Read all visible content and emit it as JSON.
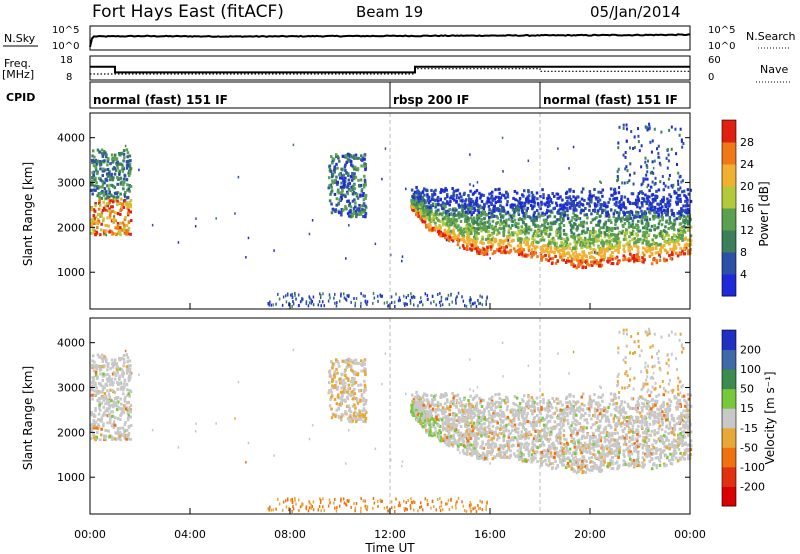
{
  "header": {
    "station": "Fort Hays East (fitACF)",
    "beam": "Beam 19",
    "date": "05/Jan/2014"
  },
  "noise_panel": {
    "left_label": "N.Sky",
    "left_ticks": [
      "10^5",
      "10^0"
    ],
    "right_label": "N.Search",
    "right_ticks": [
      "10^5",
      "10^0"
    ]
  },
  "freq_panel": {
    "left_label_1": "Freq.",
    "left_label_2": "[MHz]",
    "left_ticks": [
      "18",
      "8"
    ],
    "right_label": "Nave",
    "right_ticks": [
      "60",
      "0"
    ]
  },
  "cpid_panel": {
    "label": "CPID",
    "segments": [
      {
        "start_hour": 0,
        "text": "normal (fast) 151 IF"
      },
      {
        "start_hour": 12,
        "text": "rbsp 200 IF"
      },
      {
        "start_hour": 18,
        "text": "normal (fast) 151 IF"
      }
    ]
  },
  "x_axis": {
    "label": "Time UT",
    "ticks": [
      "00:00",
      "04:00",
      "08:00",
      "12:00",
      "16:00",
      "20:00",
      "00:00"
    ],
    "tick_hours": [
      0,
      4,
      8,
      12,
      16,
      20,
      24
    ]
  },
  "y_axis": {
    "label": "Slant Range [km]",
    "ticks": [
      1000,
      2000,
      3000,
      4000
    ],
    "range": [
      180,
      4550
    ]
  },
  "power_scale": {
    "label": "Power [dB]",
    "ticks": [
      "4",
      "8",
      "12",
      "16",
      "20",
      "24",
      "28"
    ],
    "colors": [
      "#1e2ad8",
      "#2c4fa8",
      "#3c7f5c",
      "#5aa050",
      "#b4c83c",
      "#f0b030",
      "#f07818",
      "#e02010"
    ]
  },
  "velocity_scale": {
    "label": "Velocity [m s⁻¹]",
    "ticks": [
      "200",
      "100",
      "50",
      "15",
      "-15",
      "-50",
      "-100",
      "-200"
    ],
    "colors": [
      "#2030c0",
      "#3e6aa8",
      "#3c8c50",
      "#78c83c",
      "#c8c8c8",
      "#e8a838",
      "#f07010",
      "#e03010",
      "#d80000"
    ]
  },
  "chart_data": [
    {
      "type": "line",
      "title": "Fort Hays East (fitACF) Beam 19 05/Jan/2014",
      "panel": "noise",
      "series": [
        {
          "name": "N.Sky",
          "x_hours": [
            0,
            0.1,
            2,
            6,
            10,
            14,
            18,
            22,
            24
          ],
          "log10_values": [
            0.3,
            3.2,
            3.3,
            3.2,
            3.3,
            3.4,
            3.5,
            3.6,
            3.7
          ]
        }
      ]
    },
    {
      "type": "line",
      "panel": "frequency",
      "series": [
        {
          "name": "Freq.",
          "x_hours": [
            0,
            1,
            1,
            13,
            13,
            24
          ],
          "values": [
            15,
            15,
            11.5,
            11.5,
            15,
            15
          ]
        },
        {
          "name": "Nave",
          "x_hours": [
            0,
            13,
            13,
            18,
            18,
            24
          ],
          "values": [
            15,
            15,
            35,
            35,
            25,
            25
          ]
        }
      ]
    },
    {
      "type": "heatmap",
      "panel": "power",
      "colorbar_label": "Power [dB]",
      "colorbar_range": [
        0,
        30
      ],
      "scatter_regions": [
        {
          "x_hours": [
            0,
            1.6
          ],
          "range_km": [
            1800,
            3800
          ],
          "typical_db": 10
        },
        {
          "x_hours": [
            9.5,
            11
          ],
          "range_km": [
            2200,
            3600
          ],
          "typical_db": 8
        },
        {
          "x_hours": [
            12.8,
            24
          ],
          "range_km": [
            1000,
            2800
          ],
          "typical_db": 14,
          "lower_edge_db": 26
        }
      ],
      "lower_edge_km": [
        [
          12.8,
          2400
        ],
        [
          13.5,
          1900
        ],
        [
          14.5,
          1600
        ],
        [
          15.5,
          1350
        ],
        [
          16.5,
          1400
        ],
        [
          17.5,
          1300
        ],
        [
          18.5,
          1150
        ],
        [
          19.5,
          1050
        ],
        [
          20.5,
          1100
        ],
        [
          21.5,
          1200
        ],
        [
          22.5,
          1150
        ],
        [
          23.5,
          1300
        ],
        [
          24,
          1400
        ]
      ]
    },
    {
      "type": "heatmap",
      "panel": "velocity",
      "colorbar_label": "Velocity [m s⁻¹]",
      "colorbar_range": [
        -200,
        200
      ],
      "scatter_regions": [
        {
          "x_hours": [
            0,
            1.6
          ],
          "range_km": [
            1800,
            3800
          ],
          "typical_velocity": 0
        },
        {
          "x_hours": [
            9.5,
            11
          ],
          "range_km": [
            2200,
            3600
          ],
          "typical_velocity": -10
        },
        {
          "x_hours": [
            12.8,
            24
          ],
          "range_km": [
            1000,
            2800
          ],
          "typical_velocity": 0
        }
      ]
    }
  ]
}
